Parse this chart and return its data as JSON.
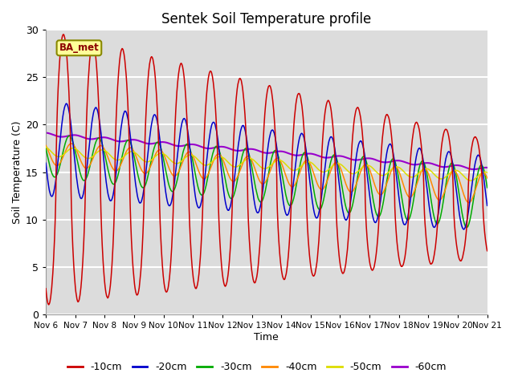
{
  "title": "Sentek Soil Temperature profile",
  "xlabel": "Time",
  "ylabel": "Soil Temperature (C)",
  "ylim": [
    0,
    30
  ],
  "yticks": [
    0,
    5,
    10,
    15,
    20,
    25,
    30
  ],
  "xlim": [
    0,
    15
  ],
  "xtick_labels": [
    "Nov 6",
    "Nov 7",
    "Nov 8",
    "Nov 9",
    "Nov 10",
    "Nov 11",
    "Nov 12",
    "Nov 13",
    "Nov 14",
    "Nov 15",
    "Nov 16",
    "Nov 17",
    "Nov 18",
    "Nov 19",
    "Nov 20",
    "Nov 21"
  ],
  "station_label": "BA_met",
  "colors": {
    "-10cm": "#cc0000",
    "-20cm": "#0000cc",
    "-30cm": "#00aa00",
    "-40cm": "#ff8800",
    "-50cm": "#dddd00",
    "-60cm": "#9900cc"
  },
  "axes_background": "#dcdcdc",
  "grid_color": "white"
}
